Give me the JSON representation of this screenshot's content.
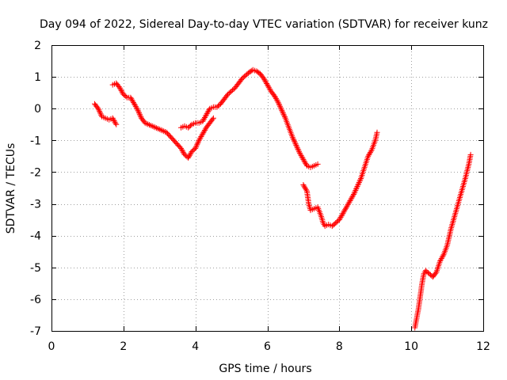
{
  "chart_data": {
    "type": "scatter",
    "title": "Day 094 of 2022, Sidereal Day-to-day VTEC variation (SDTVAR) for receiver kunz",
    "xlabel": "GPS time / hours",
    "ylabel": "SDTVAR / TECUs",
    "xlim": [
      0,
      12
    ],
    "ylim": [
      -7,
      2
    ],
    "xticks": [
      0,
      2,
      4,
      6,
      8,
      10,
      12
    ],
    "yticks": [
      -7,
      -6,
      -5,
      -4,
      -3,
      -2,
      -1,
      0,
      1,
      2
    ],
    "grid": true,
    "marker": "+",
    "color": "#ff0000",
    "segments": [
      [
        [
          1.2,
          0.15
        ],
        [
          1.3,
          0.0
        ],
        [
          1.4,
          -0.25
        ],
        [
          1.5,
          -0.3
        ],
        [
          1.6,
          -0.35
        ],
        [
          1.7,
          -0.3
        ],
        [
          1.8,
          -0.5
        ]
      ],
      [
        [
          1.7,
          0.75
        ],
        [
          1.8,
          0.8
        ],
        [
          1.9,
          0.65
        ],
        [
          2.0,
          0.45
        ],
        [
          2.1,
          0.35
        ],
        [
          2.2,
          0.35
        ],
        [
          2.3,
          0.15
        ],
        [
          2.4,
          -0.05
        ],
        [
          2.5,
          -0.3
        ],
        [
          2.6,
          -0.45
        ],
        [
          2.8,
          -0.55
        ],
        [
          3.0,
          -0.65
        ],
        [
          3.2,
          -0.75
        ],
        [
          3.4,
          -1.0
        ],
        [
          3.6,
          -1.25
        ],
        [
          3.7,
          -1.45
        ],
        [
          3.8,
          -1.55
        ],
        [
          3.9,
          -1.35
        ],
        [
          4.0,
          -1.25
        ],
        [
          4.1,
          -1.0
        ],
        [
          4.2,
          -0.8
        ],
        [
          4.3,
          -0.6
        ],
        [
          4.4,
          -0.45
        ],
        [
          4.5,
          -0.3
        ]
      ],
      [
        [
          3.6,
          -0.6
        ],
        [
          3.7,
          -0.55
        ],
        [
          3.8,
          -0.6
        ],
        [
          3.9,
          -0.5
        ],
        [
          4.0,
          -0.45
        ],
        [
          4.1,
          -0.45
        ],
        [
          4.2,
          -0.4
        ],
        [
          4.3,
          -0.2
        ],
        [
          4.4,
          0.0
        ],
        [
          4.5,
          0.05
        ],
        [
          4.6,
          0.05
        ],
        [
          4.7,
          0.15
        ],
        [
          4.8,
          0.3
        ],
        [
          4.9,
          0.45
        ],
        [
          5.0,
          0.55
        ],
        [
          5.1,
          0.65
        ],
        [
          5.2,
          0.8
        ],
        [
          5.3,
          0.95
        ],
        [
          5.4,
          1.05
        ],
        [
          5.5,
          1.15
        ],
        [
          5.6,
          1.22
        ],
        [
          5.7,
          1.18
        ],
        [
          5.8,
          1.1
        ],
        [
          5.9,
          0.95
        ],
        [
          6.0,
          0.75
        ],
        [
          6.1,
          0.55
        ],
        [
          6.2,
          0.4
        ],
        [
          6.3,
          0.2
        ],
        [
          6.4,
          -0.05
        ],
        [
          6.5,
          -0.3
        ],
        [
          6.6,
          -0.6
        ],
        [
          6.7,
          -0.9
        ],
        [
          6.8,
          -1.15
        ],
        [
          6.9,
          -1.4
        ],
        [
          7.0,
          -1.6
        ],
        [
          7.1,
          -1.8
        ],
        [
          7.2,
          -1.85
        ],
        [
          7.3,
          -1.8
        ],
        [
          7.4,
          -1.75
        ]
      ],
      [
        [
          7.0,
          -2.4
        ],
        [
          7.1,
          -2.6
        ],
        [
          7.15,
          -3.0
        ],
        [
          7.2,
          -3.2
        ],
        [
          7.3,
          -3.15
        ],
        [
          7.4,
          -3.1
        ],
        [
          7.5,
          -3.4
        ],
        [
          7.55,
          -3.6
        ],
        [
          7.6,
          -3.7
        ],
        [
          7.7,
          -3.65
        ],
        [
          7.8,
          -3.7
        ],
        [
          7.9,
          -3.6
        ],
        [
          8.0,
          -3.5
        ],
        [
          8.1,
          -3.3
        ],
        [
          8.2,
          -3.1
        ],
        [
          8.3,
          -2.9
        ],
        [
          8.4,
          -2.7
        ],
        [
          8.5,
          -2.45
        ],
        [
          8.6,
          -2.2
        ],
        [
          8.7,
          -1.85
        ],
        [
          8.8,
          -1.5
        ],
        [
          8.9,
          -1.3
        ],
        [
          9.0,
          -1.0
        ],
        [
          9.05,
          -0.75
        ]
      ],
      [
        [
          10.1,
          -6.9
        ],
        [
          10.15,
          -6.6
        ],
        [
          10.2,
          -6.3
        ],
        [
          10.25,
          -5.9
        ],
        [
          10.3,
          -5.5
        ],
        [
          10.35,
          -5.2
        ],
        [
          10.4,
          -5.1
        ],
        [
          10.5,
          -5.2
        ],
        [
          10.6,
          -5.3
        ],
        [
          10.7,
          -5.15
        ],
        [
          10.8,
          -4.8
        ],
        [
          10.9,
          -4.6
        ],
        [
          11.0,
          -4.3
        ],
        [
          11.1,
          -3.8
        ],
        [
          11.2,
          -3.4
        ],
        [
          11.3,
          -3.0
        ],
        [
          11.4,
          -2.6
        ],
        [
          11.5,
          -2.2
        ],
        [
          11.6,
          -1.75
        ],
        [
          11.65,
          -1.45
        ]
      ]
    ]
  }
}
